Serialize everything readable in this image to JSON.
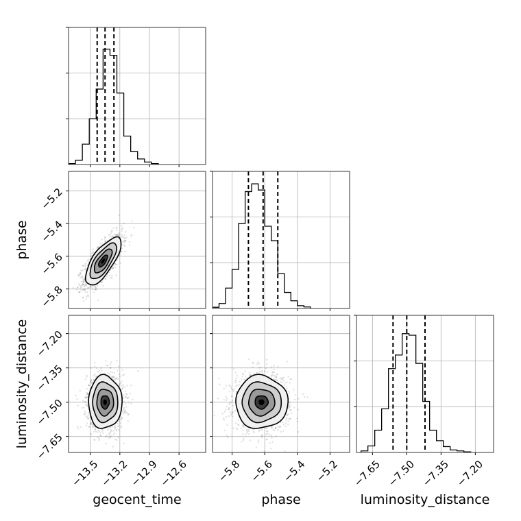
{
  "chart_data": {
    "type": "corner",
    "parameters": [
      "geocent_time",
      "phase",
      "luminosity_distance"
    ],
    "axis_labels": {
      "geocent_time": "geocent_time",
      "phase": "phase",
      "luminosity_distance": "luminosity_distance"
    },
    "ranges": {
      "geocent_time": [
        -13.72,
        -12.33
      ],
      "phase": [
        -5.92,
        -5.08
      ],
      "luminosity_distance": [
        -7.72,
        -7.12
      ]
    },
    "ticks": {
      "geocent_time": [
        -13.5,
        -13.2,
        -12.9,
        -12.6
      ],
      "phase": [
        -5.8,
        -5.6,
        -5.4,
        -5.2
      ],
      "luminosity_distance": [
        -7.65,
        -7.5,
        -7.35,
        -7.2
      ]
    },
    "tick_labels": {
      "geocent_time": [
        "−13.5",
        "−13.2",
        "−12.9",
        "−12.6"
      ],
      "phase": [
        "−5.8",
        "−5.6",
        "−5.4",
        "−5.2"
      ],
      "luminosity_distance": [
        "−7.65",
        "−7.50",
        "−7.35",
        "−7.20"
      ]
    },
    "quantiles": {
      "geocent_time": [
        -13.43,
        -13.35,
        -13.26
      ],
      "phase": [
        -5.7,
        -5.61,
        -5.52
      ],
      "luminosity_distance": [
        -7.56,
        -7.5,
        -7.42
      ]
    },
    "histograms": {
      "geocent_time": {
        "bins": [
          -13.72,
          -13.65,
          -13.58,
          -13.51,
          -13.44,
          -13.37,
          -13.3,
          -13.23,
          -13.16,
          -13.09,
          -13.02,
          -12.95,
          -12.88,
          -12.81
        ],
        "heights": [
          0.3,
          1.4,
          6.6,
          14.8,
          24.4,
          37.3,
          35.3,
          23.1,
          9.2,
          4.2,
          1.8,
          0.8,
          0.3
        ]
      },
      "phase": {
        "bins": [
          -5.92,
          -5.88,
          -5.84,
          -5.8,
          -5.76,
          -5.72,
          -5.68,
          -5.64,
          -5.6,
          -5.56,
          -5.52,
          -5.48,
          -5.44,
          -5.4,
          -5.36,
          -5.32
        ],
        "heights": [
          0.4,
          1.6,
          6.6,
          12.6,
          27.5,
          37.8,
          40.3,
          38.3,
          26.6,
          21.9,
          11.3,
          5.2,
          2.5,
          0.9,
          0.5
        ]
      },
      "luminosity_distance": {
        "bins": [
          -7.7,
          -7.67,
          -7.64,
          -7.61,
          -7.58,
          -7.55,
          -7.52,
          -7.49,
          -7.46,
          -7.43,
          -7.4,
          -7.37,
          -7.34,
          -7.31,
          -7.28,
          -7.25,
          -7.22
        ],
        "heights": [
          0.5,
          2.1,
          7.2,
          14.1,
          27.1,
          31.5,
          38.4,
          37.9,
          28.8,
          16.5,
          7.2,
          3.8,
          1.9,
          0.8,
          0.5,
          0.2
        ]
      }
    },
    "pairs": [
      {
        "x": "geocent_time",
        "y": "phase",
        "center": [
          -13.37,
          -5.63
        ],
        "sigma": [
          0.09,
          0.073
        ],
        "corr": 0.72
      },
      {
        "x": "geocent_time",
        "y": "luminosity_distance",
        "center": [
          -13.35,
          -7.5
        ],
        "sigma": [
          0.085,
          0.058
        ],
        "corr": 0.0
      },
      {
        "x": "phase",
        "y": "luminosity_distance",
        "center": [
          -5.62,
          -7.5
        ],
        "sigma": [
          0.08,
          0.058
        ],
        "corr": 0.0
      }
    ],
    "contour_levels_sigma": [
      0.5,
      1.0,
      1.5,
      2.0
    ],
    "hist_max": 40.3,
    "grid": true
  }
}
